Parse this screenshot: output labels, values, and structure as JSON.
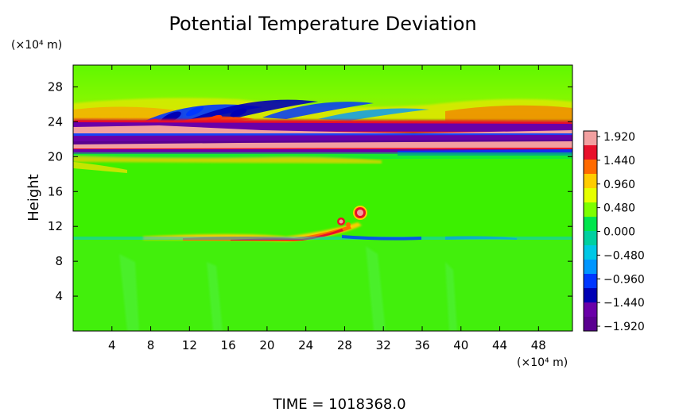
{
  "chart_data": {
    "type": "heatmap",
    "title": "Potential Temperature Deviation",
    "ylabel": "Height",
    "y_unit": "(×10⁴ m)",
    "x_unit": "(×10⁴ m)",
    "xlim": [
      0,
      51.5
    ],
    "ylim": [
      0,
      30.5
    ],
    "x_ticks": [
      "4",
      "8",
      "12",
      "16",
      "20",
      "24",
      "28",
      "32",
      "36",
      "40",
      "44",
      "48"
    ],
    "y_ticks": [
      "4",
      "8",
      "12",
      "16",
      "20",
      "24",
      "28"
    ],
    "colorbar": {
      "labels": [
        "1.920",
        "1.440",
        "0.960",
        "0.480",
        "0.000",
        "−0.480",
        "−0.960",
        "−1.440",
        "−1.920"
      ],
      "colors": [
        "#f2a0a0",
        "#e8102a",
        "#ff6a00",
        "#ffcc00",
        "#e6ff00",
        "#7dff00",
        "#00e64d",
        "#00d0a0",
        "#00c8e6",
        "#0096ff",
        "#0037ff",
        "#0000b4",
        "#6a00a8",
        "#5a0090"
      ]
    },
    "features": [
      {
        "name": "stratospheric wave band",
        "x_range": [
          0,
          51.5
        ],
        "y_range": [
          19,
          25.5
        ],
        "value": "±1.920"
      },
      {
        "name": "warm layer",
        "x_range": [
          17,
          30
        ],
        "y_range": [
          10.3,
          11.5
        ],
        "value": 1.44
      },
      {
        "name": "warm blob",
        "x": 29.5,
        "y": 13.5,
        "value": 1.92
      },
      {
        "name": "background",
        "value": 0.0
      }
    ]
  },
  "footer": {
    "time_label": "TIME  =  1018368.0"
  }
}
